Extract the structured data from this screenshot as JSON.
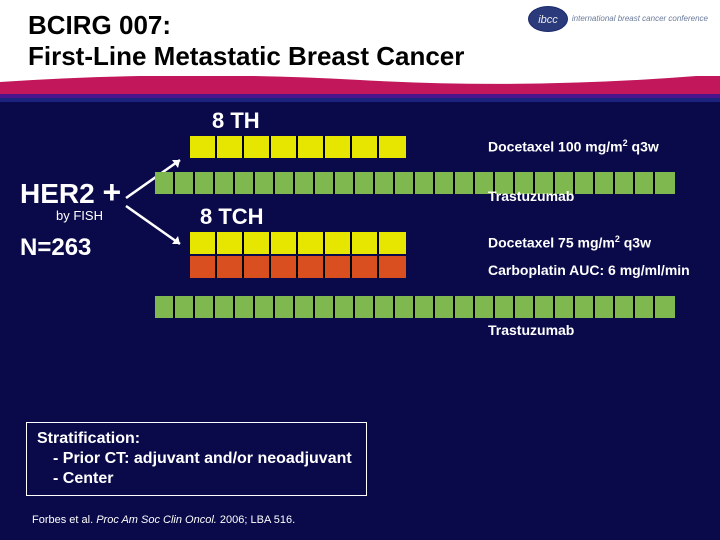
{
  "header": {
    "title_line1": "BCIRG 007:",
    "title_line2": "First-Line Metastatic Breast Cancer",
    "logo_text": "international breast cancer conference",
    "logo_short": "ibcc"
  },
  "left": {
    "her2": "HER2",
    "plus": "+",
    "byfish": "by FISH",
    "neq": "N=263"
  },
  "arms": {
    "th": {
      "label": "8 TH"
    },
    "tch": {
      "label": "8 TCH"
    }
  },
  "bars": {
    "docetaxel100": {
      "color": "#e6e600",
      "segments": 8,
      "seg_width": 27,
      "desc_pre": "Docetaxel 100 mg/m",
      "desc_sup": "2",
      "desc_post": " q3w"
    },
    "trastuzumab_top": {
      "color": "#7fb84f",
      "segments": 26,
      "seg_width": 20,
      "desc": "Trastuzumab"
    },
    "docetaxel75": {
      "color": "#e6e600",
      "segments": 8,
      "seg_width": 27,
      "desc_pre": "Docetaxel 75 mg/m",
      "desc_sup": "2",
      "desc_post": " q3w"
    },
    "carboplatin": {
      "color": "#d94f1f",
      "segments": 8,
      "seg_width": 27,
      "desc": "Carboplatin AUC: 6 mg/ml/min"
    },
    "trastuzumab_bottom": {
      "color": "#7fb84f",
      "segments": 26,
      "seg_width": 20,
      "desc": "Trastuzumab"
    }
  },
  "arrows": {
    "color": "#ffffff"
  },
  "strat": {
    "title": "Stratification:",
    "line1": "- Prior CT: adjuvant and/or neoadjuvant",
    "line2": "- Center"
  },
  "citation": {
    "authors": "Forbes et al. ",
    "journal": "Proc Am Soc Clin Oncol.",
    "rest": " 2006; LBA 516."
  },
  "wave": {
    "c1": "#c2185b",
    "c2": "#4a148c",
    "c3": "#1a237e"
  }
}
